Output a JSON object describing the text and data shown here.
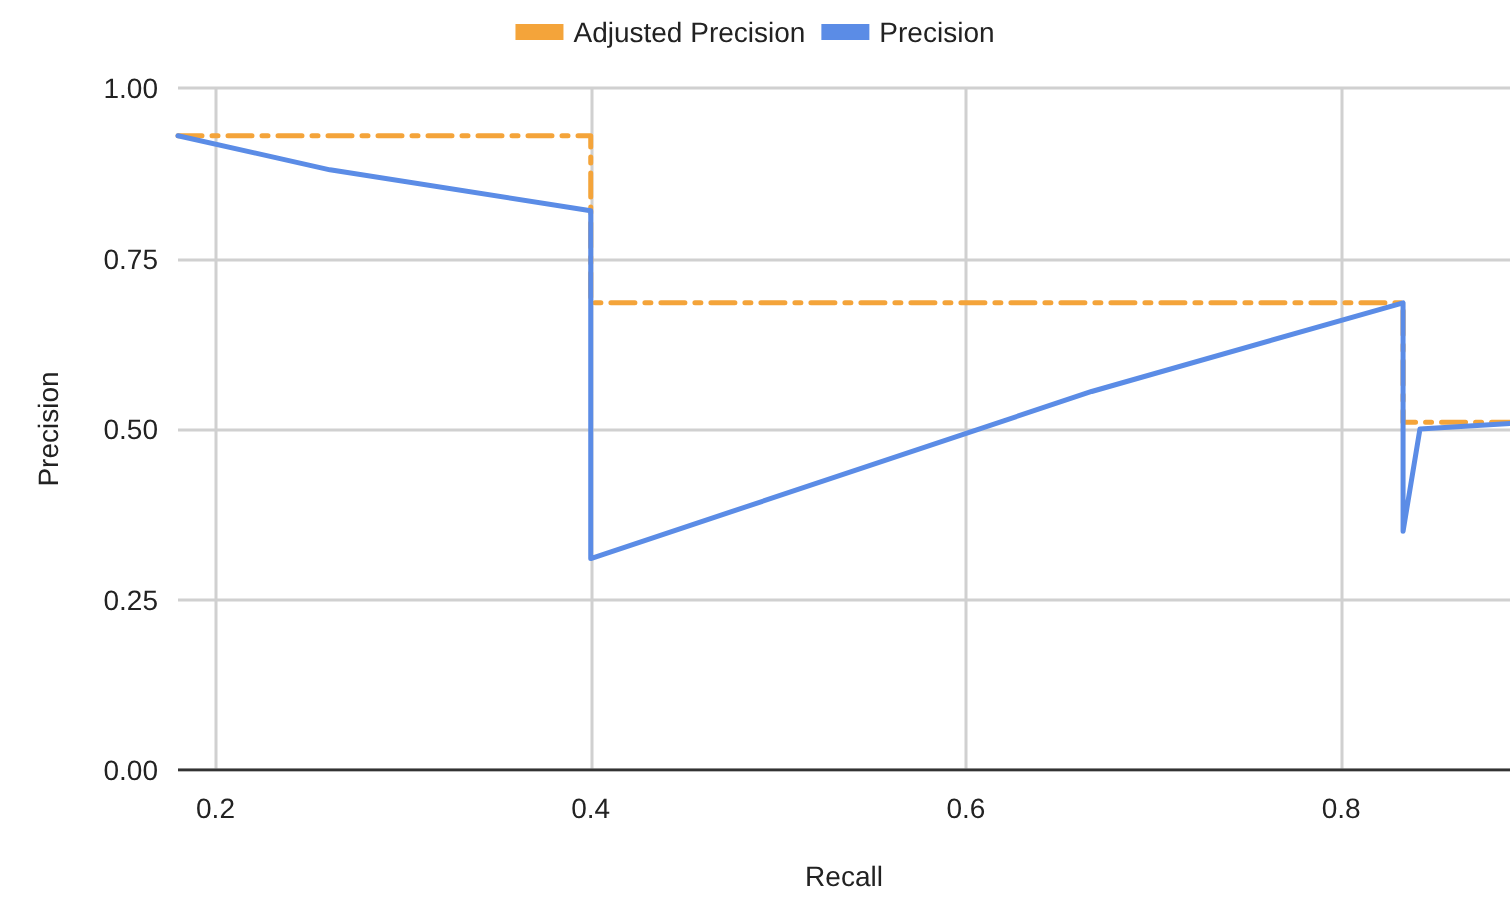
{
  "chart_data": {
    "type": "line",
    "xlabel": "Recall",
    "ylabel": "Precision",
    "xlim": [
      0.18,
      0.89
    ],
    "xticks": [
      0.2,
      0.4,
      0.6,
      0.8
    ],
    "ylim": [
      0,
      1
    ],
    "yticks": [
      {
        "value": 0,
        "label": "0.00"
      },
      {
        "value": 0.25,
        "label": "0.25"
      },
      {
        "value": 0.5,
        "label": "0.50"
      },
      {
        "value": 0.75,
        "label": "0.75"
      },
      {
        "value": 1,
        "label": "1.00"
      }
    ],
    "grid": true,
    "legend": "top",
    "marker": "none",
    "series": [
      {
        "name": "Adjusted Precision",
        "color": "#f4a43a",
        "line_style": "dashed",
        "x": [
          0.18,
          0.4,
          0.4,
          0.833,
          0.833,
          0.89
        ],
        "values": [
          0.93,
          0.93,
          0.685,
          0.685,
          0.51,
          0.51
        ]
      },
      {
        "name": "Precision",
        "color": "#5b8ce6",
        "line_style": "solid",
        "x": [
          0.18,
          0.261,
          0.4,
          0.4,
          0.667,
          0.833,
          0.833,
          0.842,
          0.89
        ],
        "values": [
          0.93,
          0.88,
          0.82,
          0.31,
          0.555,
          0.685,
          0.35,
          0.5,
          0.508
        ]
      }
    ]
  }
}
